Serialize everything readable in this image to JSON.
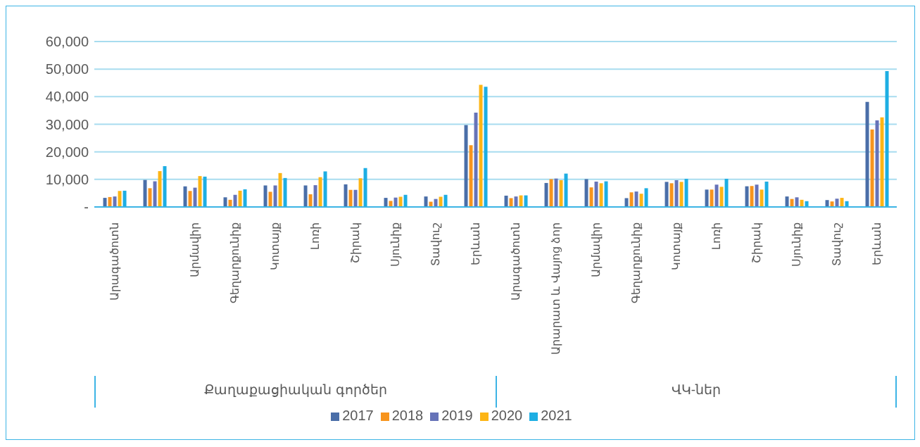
{
  "chart_data": {
    "type": "bar",
    "categories": [
      "Արագածոտն",
      null,
      "Արմավիր",
      "Գեղարքունիք",
      "Կոտայք",
      "Լոռի",
      "Շիրակ",
      "Սյունիք",
      "Տավուշ",
      "Երևան",
      "Արագածոտն",
      "Արարատ և Վայոց ձոր",
      "Արմավիր",
      "Գեղարքունիք",
      "Կոտայք",
      "Լոռի",
      "Շիրակ",
      "Սյունիք",
      "Տավուշ",
      "Երևան"
    ],
    "series": [
      {
        "name": "2017",
        "color": "#4a6ea8",
        "values": [
          3300,
          9800,
          7500,
          3500,
          7800,
          7800,
          8200,
          3300,
          3800,
          29700,
          4100,
          8700,
          10100,
          3200,
          9100,
          6300,
          7500,
          3800,
          2500,
          38100
        ]
      },
      {
        "name": "2018",
        "color": "#f7941d",
        "values": [
          3600,
          6800,
          5800,
          2600,
          5500,
          4600,
          6200,
          2200,
          1900,
          22400,
          3200,
          10100,
          7100,
          5300,
          8600,
          6300,
          7600,
          2900,
          2000,
          28100
        ]
      },
      {
        "name": "2019",
        "color": "#6673b8",
        "values": [
          3800,
          9300,
          7000,
          4400,
          7800,
          7900,
          6200,
          3400,
          2900,
          34200,
          3800,
          10300,
          9200,
          5600,
          9700,
          8100,
          8100,
          3500,
          3000,
          31400
        ]
      },
      {
        "name": "2020",
        "color": "#fdb515",
        "values": [
          5800,
          13000,
          11200,
          5900,
          12300,
          10800,
          10400,
          3700,
          3700,
          44300,
          4200,
          9700,
          8600,
          4800,
          9100,
          7300,
          6300,
          2600,
          3300,
          32500
        ]
      },
      {
        "name": "2021",
        "color": "#1daee3",
        "values": [
          5900,
          14800,
          11000,
          6400,
          10500,
          12900,
          14100,
          4400,
          4400,
          43600,
          4200,
          12100,
          9300,
          6800,
          10200,
          10200,
          9200,
          2100,
          2100,
          49300
        ]
      }
    ],
    "ylim": [
      0,
      60000
    ],
    "yticks": [
      {
        "value": 0,
        "label": "-"
      },
      {
        "value": 10000,
        "label": "10,000"
      },
      {
        "value": 20000,
        "label": "20,000"
      },
      {
        "value": 30000,
        "label": "30,000"
      },
      {
        "value": 40000,
        "label": "40,000"
      },
      {
        "value": 50000,
        "label": "50,000"
      },
      {
        "value": 60000,
        "label": "60,000"
      }
    ],
    "annotations": [
      "Քաղաքացիական գործեր",
      "ՎԿ-ներ"
    ],
    "grid": "y",
    "legend": "bottom"
  }
}
